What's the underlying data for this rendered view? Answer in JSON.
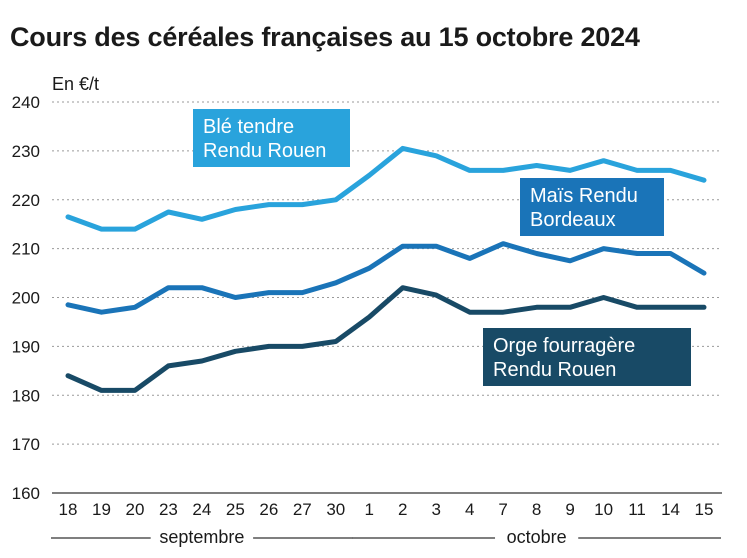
{
  "page": {
    "title": "Cours des céréales françaises au 15 octobre 2024"
  },
  "chart_data": {
    "type": "line",
    "title": "Cours des céréales françaises au 15 octobre 2024",
    "ylabel": "En €/t",
    "xlabel": "",
    "ylim": [
      160,
      240
    ],
    "yticks": [
      160,
      170,
      180,
      190,
      200,
      210,
      220,
      230,
      240
    ],
    "grid": "horizontal dotted",
    "categories": [
      "18",
      "19",
      "20",
      "23",
      "24",
      "25",
      "26",
      "27",
      "30",
      "1",
      "2",
      "3",
      "4",
      "7",
      "8",
      "9",
      "10",
      "11",
      "14",
      "15"
    ],
    "month_groups": [
      {
        "label": "septembre",
        "start": 0,
        "end": 8
      },
      {
        "label": "octobre",
        "start": 9,
        "end": 19
      }
    ],
    "series": [
      {
        "name": "Blé tendre Rendu Rouen",
        "label_lines": [
          "Blé tendre",
          "Rendu Rouen"
        ],
        "color": "#29a3dc",
        "values": [
          216.5,
          214,
          214,
          217.5,
          216,
          218,
          219,
          219,
          220,
          225,
          230.5,
          229,
          226,
          226,
          227,
          226,
          228,
          226,
          226,
          224
        ]
      },
      {
        "name": "Maïs Rendu Bordeaux",
        "label_lines": [
          "Maïs Rendu",
          "Bordeaux"
        ],
        "color": "#1a74b8",
        "values": [
          198.5,
          197,
          198,
          202,
          202,
          200,
          201,
          201,
          203,
          206,
          210.5,
          210.5,
          208,
          211,
          209,
          207.5,
          210,
          209,
          209,
          205
        ]
      },
      {
        "name": "Orge fourragère Rendu Rouen",
        "label_lines": [
          "Orge fourragère",
          "Rendu Rouen"
        ],
        "color": "#184a66",
        "values": [
          184,
          181,
          181,
          186,
          187,
          189,
          190,
          190,
          191,
          196,
          202,
          200.5,
          197,
          197,
          198,
          198,
          200,
          198,
          198,
          198
        ]
      }
    ]
  }
}
